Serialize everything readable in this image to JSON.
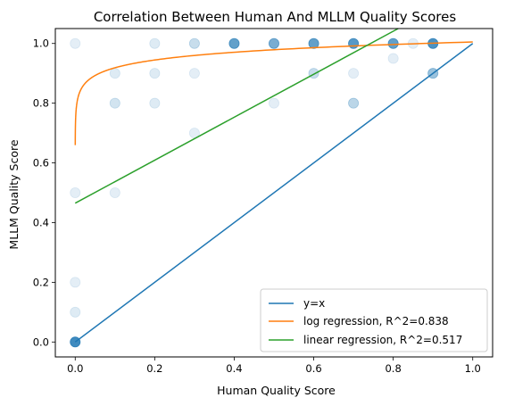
{
  "chart_data": {
    "type": "scatter",
    "title": "Correlation Between Human And MLLM Quality Scores",
    "xlabel": "Human Quality Score",
    "ylabel": "MLLM Quality Score",
    "xlim": [
      -0.05,
      1.05
    ],
    "ylim": [
      -0.05,
      1.05
    ],
    "xticks": [
      0.0,
      0.2,
      0.4,
      0.6,
      0.8,
      1.0
    ],
    "yticks": [
      0.0,
      0.2,
      0.4,
      0.6,
      0.8,
      1.0
    ],
    "grid": false,
    "legend_position": "lower-right",
    "point_color": "#1f77b4",
    "points": [
      {
        "x": 0.0,
        "y": 0.0,
        "alpha": 0.85
      },
      {
        "x": 0.0,
        "y": 0.1,
        "alpha": 0.15
      },
      {
        "x": 0.0,
        "y": 0.2,
        "alpha": 0.12
      },
      {
        "x": 0.0,
        "y": 0.5,
        "alpha": 0.12
      },
      {
        "x": 0.0,
        "y": 1.0,
        "alpha": 0.12
      },
      {
        "x": 0.1,
        "y": 0.5,
        "alpha": 0.12
      },
      {
        "x": 0.1,
        "y": 0.8,
        "alpha": 0.2
      },
      {
        "x": 0.1,
        "y": 0.9,
        "alpha": 0.15
      },
      {
        "x": 0.2,
        "y": 0.8,
        "alpha": 0.15
      },
      {
        "x": 0.2,
        "y": 0.9,
        "alpha": 0.15
      },
      {
        "x": 0.2,
        "y": 1.0,
        "alpha": 0.15
      },
      {
        "x": 0.3,
        "y": 0.7,
        "alpha": 0.12
      },
      {
        "x": 0.3,
        "y": 0.9,
        "alpha": 0.12
      },
      {
        "x": 0.3,
        "y": 1.0,
        "alpha": 0.25
      },
      {
        "x": 0.4,
        "y": 1.0,
        "alpha": 0.7
      },
      {
        "x": 0.5,
        "y": 0.8,
        "alpha": 0.12
      },
      {
        "x": 0.5,
        "y": 1.0,
        "alpha": 0.6
      },
      {
        "x": 0.6,
        "y": 0.9,
        "alpha": 0.25
      },
      {
        "x": 0.6,
        "y": 1.0,
        "alpha": 0.7
      },
      {
        "x": 0.7,
        "y": 0.8,
        "alpha": 0.3
      },
      {
        "x": 0.7,
        "y": 0.9,
        "alpha": 0.12
      },
      {
        "x": 0.7,
        "y": 1.0,
        "alpha": 0.75
      },
      {
        "x": 0.8,
        "y": 0.95,
        "alpha": 0.12
      },
      {
        "x": 0.8,
        "y": 1.0,
        "alpha": 0.7
      },
      {
        "x": 0.85,
        "y": 1.0,
        "alpha": 0.12
      },
      {
        "x": 0.9,
        "y": 0.9,
        "alpha": 0.45
      },
      {
        "x": 0.9,
        "y": 1.0,
        "alpha": 0.8
      }
    ],
    "series": [
      {
        "name": "y=x",
        "color": "#1f77b4",
        "kind": "identity"
      },
      {
        "name": "log regression, R^2=0.838",
        "color": "#ff7f0e",
        "kind": "log",
        "a": 1.005,
        "b": 0.0375
      },
      {
        "name": "linear regression, R^2=0.517",
        "color": "#2ca02c",
        "kind": "linear",
        "intercept": 0.465,
        "slope": 0.72
      }
    ]
  }
}
